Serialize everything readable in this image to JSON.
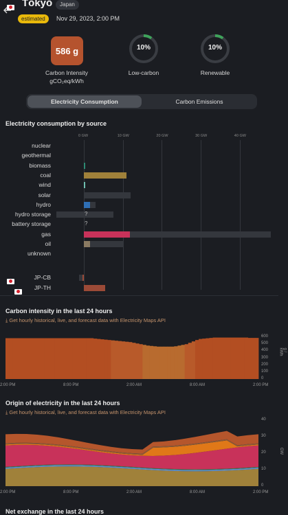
{
  "header": {
    "back_icon": "arrow-left-icon",
    "zone_title": "Tōkyō",
    "country": "Japan",
    "badge": "estimated",
    "datetime": "Nov 29, 2023, 2:00 PM"
  },
  "metrics": {
    "carbon_intensity": {
      "value": "586 g",
      "label_line1": "Carbon Intensity",
      "label_line2": "gCO₂eq/kWh",
      "color": "#b5532e"
    },
    "low_carbon": {
      "value": "10%",
      "fraction": 0.1,
      "label": "Low-carbon",
      "color": "#3fa35b"
    },
    "renewable": {
      "value": "10%",
      "fraction": 0.1,
      "label": "Renewable",
      "color": "#3fa35b"
    }
  },
  "tabs": [
    {
      "label": "Electricity Consumption",
      "active": true
    },
    {
      "label": "Carbon Emissions",
      "active": false
    }
  ],
  "consumption": {
    "title": "Electricity consumption by source",
    "ticks": [
      "0 GW",
      "10 GW",
      "20 GW",
      "30 GW",
      "40 GW"
    ],
    "sources": [
      {
        "label": "nuclear",
        "value": 0,
        "capacity": null,
        "color": "#8fb9d4"
      },
      {
        "label": "geothermal",
        "value": 0,
        "capacity": null,
        "color": "#a06a43"
      },
      {
        "label": "biomass",
        "value": 0.3,
        "capacity": null,
        "color": "#2d8a73"
      },
      {
        "label": "coal",
        "value": 11,
        "capacity": 11,
        "color": "#a0813a"
      },
      {
        "label": "wind",
        "value": 0.3,
        "capacity": null,
        "color": "#6fbfb0"
      },
      {
        "label": "solar",
        "value": 0,
        "capacity": 12,
        "color": "#e7b23b"
      },
      {
        "label": "hydro",
        "value": 1.5,
        "capacity": 3,
        "color": "#2f6fb5"
      },
      {
        "label": "hydro storage",
        "value": 0,
        "capacity": 7.5,
        "neg_capacity": 7,
        "question": "?",
        "color": "#2f6fb5"
      },
      {
        "label": "battery storage",
        "value": 0,
        "capacity": null,
        "question": "?",
        "color": "#b9b9b9"
      },
      {
        "label": "gas",
        "value": 11.8,
        "capacity": 48,
        "color": "#c8325a"
      },
      {
        "label": "oil",
        "value": 1.6,
        "capacity": 10,
        "color": "#8a7a62"
      },
      {
        "label": "unknown",
        "value": 0,
        "capacity": null,
        "color": "#8a8a8a"
      }
    ],
    "exchanges": [
      {
        "label": "JP-CB",
        "value": -0.3,
        "capacity": -1.3,
        "color": "#9b4a37"
      },
      {
        "label": "JP-TH",
        "value": 5.5,
        "capacity": 5.5,
        "color": "#9b4a37"
      }
    ]
  },
  "carbon_24h": {
    "title": "Carbon intensity in the last 24 hours",
    "api_text": "Get hourly historical, live, and forecast data with Electricity Maps API",
    "yticks": [
      "0",
      "100",
      "200",
      "300",
      "400",
      "500",
      "600"
    ],
    "yunit": "g / kWh",
    "xticks": [
      "2:00 PM",
      "8:00 PM",
      "2:00 AM",
      "8:00 AM",
      "2:00 PM"
    ],
    "chart_data": {
      "type": "bar",
      "ylim": [
        0,
        650
      ],
      "values": [
        586,
        586,
        586,
        586,
        586,
        586,
        586,
        586,
        586,
        586,
        586,
        586,
        586,
        586,
        586,
        586,
        586,
        586,
        586,
        586,
        586,
        586,
        586,
        586,
        586,
        580,
        575,
        570,
        565,
        560,
        555,
        550,
        545,
        540,
        535,
        530,
        520,
        510,
        500,
        490,
        480,
        475,
        470,
        465,
        465,
        465,
        465,
        465,
        470,
        480,
        490,
        500,
        520,
        540,
        560,
        575,
        580,
        585,
        590,
        595,
        595,
        595,
        595,
        595,
        595,
        595,
        595,
        595,
        595,
        590,
        590,
        590
      ]
    }
  },
  "origin_24h": {
    "title": "Origin of electricity in the last 24 hours",
    "api_text": "Get hourly historical, live, and forecast data with Electricity Maps API",
    "yticks": [
      "0",
      "10",
      "20",
      "30",
      "40"
    ],
    "yunit": "GW",
    "xticks": [
      "2:00 PM",
      "8:00 PM",
      "2:00 AM",
      "8:00 AM",
      "2:00 PM"
    ]
  },
  "net_exchange": {
    "title": "Net exchange in the last 24 hours"
  }
}
